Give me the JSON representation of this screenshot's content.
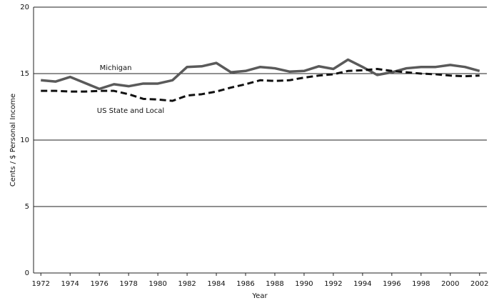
{
  "chart_data": {
    "type": "line",
    "y_label": "Cents / $ Personal Income",
    "x_label": "Year",
    "annotations": [
      "Michigan",
      "US State and Local"
    ],
    "x": [
      1972,
      1973,
      1974,
      1975,
      1976,
      1977,
      1978,
      1979,
      1980,
      1981,
      1982,
      1983,
      1984,
      1985,
      1986,
      1987,
      1988,
      1989,
      1990,
      1991,
      1992,
      1993,
      1994,
      1995,
      1996,
      1997,
      1998,
      1999,
      2000,
      2001,
      2002
    ],
    "series": [
      {
        "name": "Michigan",
        "color": "#5a5a5a",
        "dash": false,
        "values": [
          14.5,
          14.4,
          14.75,
          14.3,
          13.85,
          14.2,
          14.05,
          14.25,
          14.25,
          14.5,
          15.5,
          15.55,
          15.8,
          15.1,
          15.2,
          15.5,
          15.4,
          15.15,
          15.2,
          15.55,
          15.35,
          16.05,
          15.5,
          14.9,
          15.1,
          15.4,
          15.5,
          15.5,
          15.65,
          15.5,
          15.2
        ]
      },
      {
        "name": "US State and Local",
        "color": "#111111",
        "dash": true,
        "values": [
          13.7,
          13.7,
          13.65,
          13.65,
          13.7,
          13.7,
          13.45,
          13.1,
          13.05,
          12.95,
          13.35,
          13.45,
          13.65,
          13.95,
          14.2,
          14.5,
          14.45,
          14.5,
          14.7,
          14.85,
          14.95,
          15.2,
          15.25,
          15.35,
          15.2,
          15.1,
          15.0,
          14.95,
          14.85,
          14.8,
          14.85
        ]
      }
    ],
    "xlim": [
      1971.5,
      2002.5
    ],
    "xticks": [
      1972,
      1974,
      1976,
      1978,
      1980,
      1982,
      1984,
      1986,
      1988,
      1990,
      1992,
      1994,
      1996,
      1998,
      2000,
      2002
    ],
    "ylim": [
      0,
      20
    ],
    "yticks": [
      0,
      5,
      10,
      15,
      20
    ],
    "grid": true
  }
}
